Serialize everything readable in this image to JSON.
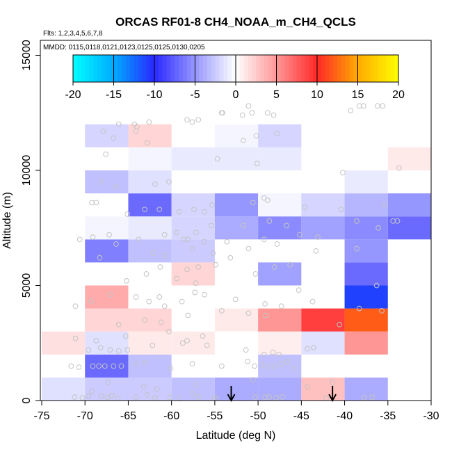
{
  "chart_data": {
    "type": "heatmap",
    "title": "ORCAS RF01-8 CH4_NOAA_m_CH4_QCLS",
    "flights_note": "Flts: 1,2,3,4,5,6,7,8",
    "dates_note": "MMDD: 0115,0118,0121,0123,0125,0125,0130,0205",
    "xlabel": "Latitude (deg N)",
    "ylabel": "Altitude (m)",
    "xlim": [
      -75,
      -30
    ],
    "ylim": [
      0,
      15500
    ],
    "x_ticks": [
      -75,
      -70,
      -65,
      -60,
      -55,
      -50,
      -45,
      -40,
      -35,
      -30
    ],
    "x_tick_labels": [
      "-75",
      "-70",
      "-65",
      "-60",
      "-55",
      "-50",
      "-45",
      "-40",
      "-35",
      "-30"
    ],
    "y_ticks": [
      0,
      5000,
      10000,
      15000
    ],
    "y_tick_labels": [
      "0",
      "5000",
      "10000",
      "15000"
    ],
    "colorbar": {
      "range": [
        -20,
        20
      ],
      "ticks": [
        -20,
        -15,
        -10,
        -5,
        0,
        5,
        10,
        15,
        20
      ],
      "tick_labels": [
        "-20",
        "-15",
        "-10",
        "-5",
        "0",
        "5",
        "10",
        "15",
        "20"
      ]
    },
    "bin_width_deg": 5,
    "bin_height_m": 1000,
    "cells": [
      {
        "lat": -75,
        "alt": 0,
        "v": -1.5
      },
      {
        "lat": -70,
        "alt": 0,
        "v": -2.5
      },
      {
        "lat": -65,
        "alt": 0,
        "v": -2.5
      },
      {
        "lat": -60,
        "alt": 0,
        "v": -3
      },
      {
        "lat": -55,
        "alt": 0,
        "v": -4
      },
      {
        "lat": -50,
        "alt": 0,
        "v": -4
      },
      {
        "lat": -45,
        "alt": 0,
        "v": 3
      },
      {
        "lat": -40,
        "alt": 0,
        "v": -4
      },
      {
        "lat": -70,
        "alt": 1000,
        "v": -7
      },
      {
        "lat": -65,
        "alt": 1000,
        "v": -3
      },
      {
        "lat": -50,
        "alt": 1000,
        "v": -3
      },
      {
        "lat": -75,
        "alt": 2000,
        "v": 1.5
      },
      {
        "lat": -70,
        "alt": 2000,
        "v": -1.5
      },
      {
        "lat": -65,
        "alt": 2000,
        "v": 1
      },
      {
        "lat": -60,
        "alt": 2000,
        "v": 1
      },
      {
        "lat": -50,
        "alt": 2000,
        "v": 0.8
      },
      {
        "lat": -45,
        "alt": 2000,
        "v": -1.5
      },
      {
        "lat": -40,
        "alt": 2000,
        "v": 5
      },
      {
        "lat": -70,
        "alt": 3000,
        "v": 2
      },
      {
        "lat": -65,
        "alt": 3000,
        "v": 2
      },
      {
        "lat": -55,
        "alt": 3000,
        "v": 1
      },
      {
        "lat": -50,
        "alt": 3000,
        "v": 5
      },
      {
        "lat": -45,
        "alt": 3000,
        "v": 9
      },
      {
        "lat": -40,
        "alt": 3000,
        "v": 12
      },
      {
        "lat": -70,
        "alt": 4000,
        "v": 4
      },
      {
        "lat": -40,
        "alt": 4000,
        "v": -11
      },
      {
        "lat": -60,
        "alt": 5000,
        "v": 2
      },
      {
        "lat": -50,
        "alt": 5000,
        "v": -4.5
      },
      {
        "lat": -40,
        "alt": 5000,
        "v": -7
      },
      {
        "lat": -70,
        "alt": 6000,
        "v": -6
      },
      {
        "lat": -65,
        "alt": 6000,
        "v": -3
      },
      {
        "lat": -60,
        "alt": 6000,
        "v": -2.5
      },
      {
        "lat": -40,
        "alt": 6000,
        "v": -5
      },
      {
        "lat": -70,
        "alt": 7000,
        "v": -0.5
      },
      {
        "lat": -65,
        "alt": 7000,
        "v": -1
      },
      {
        "lat": -60,
        "alt": 7000,
        "v": -2
      },
      {
        "lat": -55,
        "alt": 7000,
        "v": -4
      },
      {
        "lat": -50,
        "alt": 7000,
        "v": -5.5
      },
      {
        "lat": -45,
        "alt": 7000,
        "v": -4.5
      },
      {
        "lat": -40,
        "alt": 7000,
        "v": -5.5
      },
      {
        "lat": -35,
        "alt": 7000,
        "v": -7
      },
      {
        "lat": -65,
        "alt": 8000,
        "v": -7
      },
      {
        "lat": -60,
        "alt": 8000,
        "v": -2
      },
      {
        "lat": -55,
        "alt": 8000,
        "v": -5
      },
      {
        "lat": -50,
        "alt": 8000,
        "v": -0.5
      },
      {
        "lat": -45,
        "alt": 8000,
        "v": -2
      },
      {
        "lat": -40,
        "alt": 8000,
        "v": -3.5
      },
      {
        "lat": -35,
        "alt": 8000,
        "v": -5
      },
      {
        "lat": -70,
        "alt": 9000,
        "v": -3
      },
      {
        "lat": -65,
        "alt": 9000,
        "v": -1.5
      },
      {
        "lat": -40,
        "alt": 9000,
        "v": -1
      },
      {
        "lat": -65,
        "alt": 10000,
        "v": -0.5
      },
      {
        "lat": -60,
        "alt": 10000,
        "v": -1
      },
      {
        "lat": -55,
        "alt": 10000,
        "v": -1
      },
      {
        "lat": -50,
        "alt": 10000,
        "v": -1
      },
      {
        "lat": -35,
        "alt": 10000,
        "v": 1
      },
      {
        "lat": -70,
        "alt": 11000,
        "v": -2
      },
      {
        "lat": -65,
        "alt": 11000,
        "v": 2
      },
      {
        "lat": -55,
        "alt": 11000,
        "v": -0.5
      },
      {
        "lat": -50,
        "alt": 11000,
        "v": -2
      }
    ],
    "arrows_at_lat": [
      -53.1,
      -41.4
    ],
    "points": [
      [
        -71.2,
        150
      ],
      [
        -70.3,
        120
      ],
      [
        -69.6,
        200
      ],
      [
        -68.1,
        180
      ],
      [
        -67.4,
        140
      ],
      [
        -66.9,
        220
      ],
      [
        -66.2,
        100
      ],
      [
        -64.1,
        160
      ],
      [
        -62.8,
        250
      ],
      [
        -61.9,
        120
      ],
      [
        -60.2,
        140
      ],
      [
        -59.1,
        90
      ],
      [
        -57.6,
        300
      ],
      [
        -56.9,
        150
      ],
      [
        -55.1,
        110
      ],
      [
        -54.8,
        90
      ],
      [
        -50.3,
        140
      ],
      [
        -49.2,
        140
      ],
      [
        -48.7,
        150
      ],
      [
        -47.9,
        120
      ],
      [
        -47.2,
        160
      ],
      [
        -42.1,
        110
      ],
      [
        -37.7,
        120
      ],
      [
        -36.8,
        140
      ],
      [
        -69.2,
        400
      ],
      [
        -67.3,
        800
      ],
      [
        -63.2,
        600
      ],
      [
        -61.7,
        500
      ],
      [
        -57.2,
        700
      ],
      [
        -50.6,
        900
      ],
      [
        -44.3,
        600
      ],
      [
        -41.4,
        800
      ],
      [
        -71.6,
        1500
      ],
      [
        -70.7,
        1450
      ],
      [
        -69.1,
        1500
      ],
      [
        -68.4,
        1500
      ],
      [
        -67.7,
        1500
      ],
      [
        -66.7,
        1500
      ],
      [
        -65.8,
        1500
      ],
      [
        -64.1,
        1600
      ],
      [
        -63.1,
        1650
      ],
      [
        -60.1,
        1400
      ],
      [
        -57.6,
        1600
      ],
      [
        -54.2,
        1500
      ],
      [
        -51.2,
        1700
      ],
      [
        -50.4,
        1500
      ],
      [
        -49.6,
        1550
      ],
      [
        -48.8,
        1500
      ],
      [
        -48.1,
        1500
      ],
      [
        -47.3,
        1600
      ],
      [
        -46.6,
        1700
      ],
      [
        -45.9,
        1400
      ],
      [
        -69.6,
        2200
      ],
      [
        -68.2,
        2300
      ],
      [
        -67.1,
        2200
      ],
      [
        -66.1,
        2150
      ],
      [
        -65.1,
        2200
      ],
      [
        -62.2,
        2400
      ],
      [
        -58.7,
        2500
      ],
      [
        -55.9,
        2400
      ],
      [
        -51.4,
        2200
      ],
      [
        -49.3,
        2000
      ],
      [
        -48.3,
        2100
      ],
      [
        -47.6,
        2000
      ],
      [
        -44.3,
        2250
      ],
      [
        -43.6,
        2300
      ],
      [
        -71.1,
        2700
      ],
      [
        -68.7,
        2600
      ],
      [
        -65.3,
        2800
      ],
      [
        -60.3,
        3000
      ],
      [
        -58.2,
        2600
      ],
      [
        -56.4,
        2800
      ],
      [
        -66.1,
        3300
      ],
      [
        -63.1,
        3500
      ],
      [
        -61.2,
        3400
      ],
      [
        -58.1,
        3700
      ],
      [
        -54.2,
        3900
      ],
      [
        -51.1,
        3800
      ],
      [
        -49.1,
        3700
      ],
      [
        -47.3,
        4100
      ],
      [
        -43.7,
        4300
      ],
      [
        -40.6,
        3300
      ],
      [
        -38.3,
        4000
      ],
      [
        -35.7,
        3900
      ],
      [
        -71.1,
        4100
      ],
      [
        -69.3,
        4300
      ],
      [
        -67.1,
        4600
      ],
      [
        -64.1,
        4500
      ],
      [
        -62.6,
        4300
      ],
      [
        -61.4,
        4500
      ],
      [
        -60.8,
        4100
      ],
      [
        -58.8,
        4300
      ],
      [
        -57.3,
        4700
      ],
      [
        -56.2,
        4600
      ],
      [
        -52.6,
        4400
      ],
      [
        -49.2,
        4200
      ],
      [
        -45.3,
        4800
      ],
      [
        -36.3,
        5000
      ],
      [
        -65.2,
        5200
      ],
      [
        -62.9,
        5500
      ],
      [
        -61.3,
        5800
      ],
      [
        -59.4,
        5300
      ],
      [
        -58.2,
        5700
      ],
      [
        -57.2,
        5100
      ],
      [
        -56.9,
        5800
      ],
      [
        -54.9,
        5900
      ],
      [
        -53.2,
        6200
      ],
      [
        -50.3,
        5500
      ],
      [
        -48.1,
        5800
      ],
      [
        -46.3,
        5900
      ],
      [
        -68.3,
        6200
      ],
      [
        -66.4,
        6800
      ],
      [
        -62.1,
        6400
      ],
      [
        -60.8,
        6300
      ],
      [
        -58.6,
        7000
      ],
      [
        -57.6,
        6600
      ],
      [
        -56.2,
        6900
      ],
      [
        -55.2,
        6400
      ],
      [
        -53.6,
        6900
      ],
      [
        -51.1,
        6600
      ],
      [
        -49.3,
        7000
      ],
      [
        -47.8,
        6800
      ],
      [
        -45.2,
        7200
      ],
      [
        -43.3,
        6500
      ],
      [
        -38.6,
        6600
      ],
      [
        -70.6,
        7000
      ],
      [
        -69.1,
        7100
      ],
      [
        -67.2,
        7200
      ],
      [
        -63.8,
        7000
      ],
      [
        -60.8,
        7200
      ],
      [
        -59.4,
        7300
      ],
      [
        -58.1,
        7000
      ],
      [
        -57.2,
        7300
      ],
      [
        -55.4,
        7600
      ],
      [
        -51.7,
        7600
      ],
      [
        -48.7,
        7800
      ],
      [
        -46.7,
        7600
      ],
      [
        -43.1,
        7100
      ],
      [
        -38.6,
        7800
      ],
      [
        -36.1,
        7500
      ],
      [
        -34.4,
        7800
      ],
      [
        -33.9,
        7800
      ],
      [
        -69.2,
        8600
      ],
      [
        -68.7,
        8600
      ],
      [
        -65.1,
        8100
      ],
      [
        -63.1,
        8300
      ],
      [
        -61.4,
        8300
      ],
      [
        -59.1,
        8200
      ],
      [
        -57.4,
        8300
      ],
      [
        -56.2,
        8200
      ],
      [
        -55.3,
        8500
      ],
      [
        -50.6,
        8600
      ],
      [
        -49.3,
        8800
      ],
      [
        -48.9,
        8700
      ],
      [
        -44.6,
        8400
      ],
      [
        -40.4,
        8300
      ],
      [
        -35.4,
        8500
      ],
      [
        -68.1,
        9500
      ],
      [
        -66.4,
        9300
      ],
      [
        -61.9,
        9400
      ],
      [
        -60.3,
        9500
      ],
      [
        -40.2,
        9900
      ],
      [
        -67.6,
        10700
      ],
      [
        -54.7,
        10500
      ],
      [
        -50.1,
        10300
      ],
      [
        -33.7,
        10100
      ],
      [
        -67.9,
        11700
      ],
      [
        -66.7,
        11400
      ],
      [
        -64.1,
        11700
      ],
      [
        -62.8,
        11200
      ],
      [
        -51.7,
        11300
      ],
      [
        -50.2,
        11500
      ],
      [
        -47.8,
        11600
      ],
      [
        -66.1,
        12000
      ],
      [
        -64.3,
        12000
      ],
      [
        -64.0,
        11900
      ],
      [
        -62.6,
        12100
      ],
      [
        -58.2,
        12200
      ],
      [
        -57.6,
        12100
      ],
      [
        -56.9,
        12200
      ],
      [
        -54.2,
        12500
      ],
      [
        -54.1,
        12500
      ],
      [
        -51.8,
        12400
      ],
      [
        -51.1,
        12800
      ],
      [
        -50.7,
        12500
      ],
      [
        -48.9,
        12500
      ],
      [
        -48.2,
        12400
      ],
      [
        -39.3,
        12600
      ],
      [
        -38.3,
        12800
      ],
      [
        -37.8,
        12800
      ],
      [
        -36.2,
        12800
      ],
      [
        -35.6,
        12800
      ]
    ]
  }
}
